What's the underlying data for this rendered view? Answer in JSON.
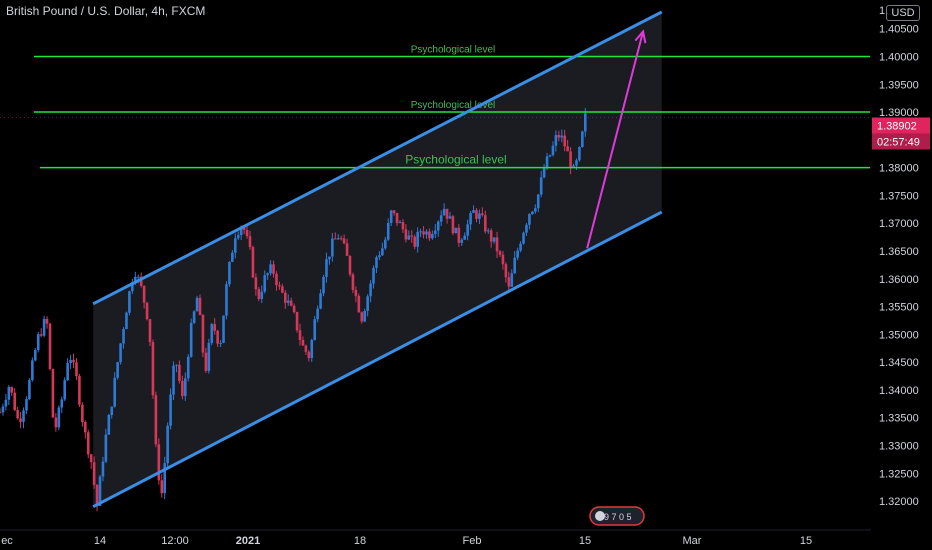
{
  "header": {
    "title": "British Pound / U.S. Dollar, 4h, FXCM",
    "currency": "USD",
    "top_tick": "1."
  },
  "colors": {
    "background": "#000000",
    "axis_text": "#d1d4dc",
    "level_line": "#22e53a",
    "level_text": "#3fbf57",
    "channel": "#3a8ee6",
    "arrow": "#e03ad8",
    "candle_up": "#2d7bd6",
    "candle_down": "#d6385a",
    "price_tag": "#e0245e"
  },
  "chart_data": {
    "type": "candlestick",
    "title": "British Pound / U.S. Dollar, 4h, FXCM",
    "y_axis": {
      "ylim": [
        1.3175,
        1.408
      ],
      "ticks": [
        "1.40500",
        "1.40000",
        "1.39500",
        "1.39000",
        "1.38500",
        "1.38000",
        "1.37500",
        "1.37000",
        "1.36500",
        "1.36000",
        "1.35500",
        "1.35000",
        "1.34500",
        "1.34000",
        "1.33500",
        "1.33000",
        "1.32500",
        "1.32000"
      ]
    },
    "x_axis": {
      "ticks": [
        {
          "label": "ec",
          "bold": false
        },
        {
          "label": "14",
          "bold": false
        },
        {
          "label": "12:00",
          "bold": false
        },
        {
          "label": "2021",
          "bold": true
        },
        {
          "label": "18",
          "bold": false
        },
        {
          "label": "Feb",
          "bold": false
        },
        {
          "label": "15",
          "bold": false
        },
        {
          "label": "Mar",
          "bold": false
        },
        {
          "label": "15",
          "bold": false
        }
      ]
    },
    "levels": [
      {
        "label": "Psychological level",
        "value": "1.40000",
        "price": 1.4,
        "large": false
      },
      {
        "label": "Psychological level",
        "value": "1.39000",
        "price": 1.39,
        "large": false
      },
      {
        "label": "Psychological level",
        "value": "1.38000",
        "price": 1.38,
        "large": true
      }
    ],
    "last_price": {
      "value": "1.38902",
      "price": 1.38902
    },
    "countdown": "02:57:49",
    "channel": {
      "upper": [
        {
          "t": 0.1,
          "price": 1.3555
        },
        {
          "t": 0.71,
          "price": 1.408
        }
      ],
      "lower": [
        {
          "t": 0.1,
          "price": 1.319
        },
        {
          "t": 0.71,
          "price": 1.372
        }
      ]
    },
    "arrow": {
      "from": {
        "t": 0.63,
        "price": 1.3655
      },
      "to": {
        "t": 0.69,
        "price": 1.4045
      }
    },
    "price_path": [
      [
        0.0,
        1.336
      ],
      [
        0.01,
        1.341
      ],
      [
        0.02,
        1.334
      ],
      [
        0.03,
        1.34
      ],
      [
        0.04,
        1.349
      ],
      [
        0.05,
        1.353
      ],
      [
        0.058,
        1.332
      ],
      [
        0.066,
        1.338
      ],
      [
        0.074,
        1.347
      ],
      [
        0.082,
        1.342
      ],
      [
        0.09,
        1.333
      ],
      [
        0.098,
        1.327
      ],
      [
        0.104,
        1.319
      ],
      [
        0.112,
        1.33
      ],
      [
        0.12,
        1.338
      ],
      [
        0.128,
        1.347
      ],
      [
        0.136,
        1.355
      ],
      [
        0.144,
        1.362
      ],
      [
        0.152,
        1.358
      ],
      [
        0.16,
        1.352
      ],
      [
        0.168,
        1.327
      ],
      [
        0.174,
        1.321
      ],
      [
        0.18,
        1.334
      ],
      [
        0.188,
        1.346
      ],
      [
        0.196,
        1.338
      ],
      [
        0.204,
        1.35
      ],
      [
        0.212,
        1.357
      ],
      [
        0.22,
        1.343
      ],
      [
        0.228,
        1.352
      ],
      [
        0.236,
        1.348
      ],
      [
        0.244,
        1.36
      ],
      [
        0.252,
        1.368
      ],
      [
        0.26,
        1.37
      ],
      [
        0.268,
        1.365
      ],
      [
        0.276,
        1.356
      ],
      [
        0.284,
        1.36
      ],
      [
        0.292,
        1.362
      ],
      [
        0.3,
        1.358
      ],
      [
        0.308,
        1.356
      ],
      [
        0.316,
        1.353
      ],
      [
        0.324,
        1.348
      ],
      [
        0.332,
        1.346
      ],
      [
        0.34,
        1.355
      ],
      [
        0.348,
        1.362
      ],
      [
        0.356,
        1.366
      ],
      [
        0.364,
        1.368
      ],
      [
        0.372,
        1.364
      ],
      [
        0.38,
        1.358
      ],
      [
        0.388,
        1.353
      ],
      [
        0.396,
        1.358
      ],
      [
        0.404,
        1.364
      ],
      [
        0.412,
        1.366
      ],
      [
        0.42,
        1.372
      ],
      [
        0.428,
        1.37
      ],
      [
        0.436,
        1.368
      ],
      [
        0.444,
        1.366
      ],
      [
        0.452,
        1.369
      ],
      [
        0.46,
        1.368
      ],
      [
        0.468,
        1.37
      ],
      [
        0.476,
        1.373
      ],
      [
        0.484,
        1.37
      ],
      [
        0.492,
        1.367
      ],
      [
        0.5,
        1.369
      ],
      [
        0.508,
        1.372
      ],
      [
        0.516,
        1.371
      ],
      [
        0.524,
        1.368
      ],
      [
        0.532,
        1.366
      ],
      [
        0.54,
        1.362
      ],
      [
        0.546,
        1.358
      ],
      [
        0.552,
        1.363
      ],
      [
        0.56,
        1.368
      ],
      [
        0.568,
        1.372
      ],
      [
        0.576,
        1.374
      ],
      [
        0.584,
        1.38
      ],
      [
        0.592,
        1.383
      ],
      [
        0.598,
        1.386
      ],
      [
        0.604,
        1.385
      ],
      [
        0.61,
        1.382
      ],
      [
        0.616,
        1.379
      ],
      [
        0.622,
        1.383
      ],
      [
        0.628,
        1.389
      ]
    ]
  },
  "badge": {
    "text": "9 7 0 5"
  }
}
